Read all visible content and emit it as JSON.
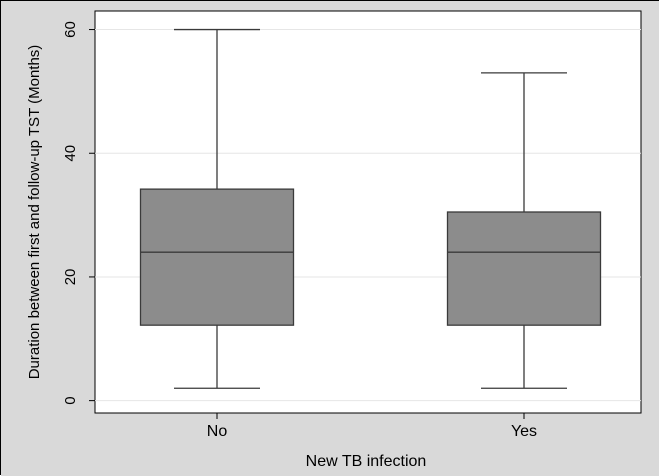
{
  "chart_data": {
    "type": "box",
    "title": "",
    "xlabel": "New TB infection",
    "ylabel": "Duration between first and follow-up TST (Months)",
    "ylim": [
      -2,
      63
    ],
    "yticks": [
      0,
      20,
      40,
      60
    ],
    "grid": true,
    "categories": [
      "No",
      "Yes"
    ],
    "boxes": [
      {
        "category": "No",
        "min": 2,
        "q1": 12.2,
        "median": 24,
        "q3": 34.2,
        "max": 60
      },
      {
        "category": "Yes",
        "min": 2,
        "q1": 12.2,
        "median": 24,
        "q3": 30.5,
        "max": 53
      }
    ],
    "colors": {
      "box_fill": "#8c8c8c",
      "box_stroke": "#3a3a3a",
      "plot_background": "#ffffff",
      "outer_background": "#d9d9d9",
      "grid": "#e6e6e6"
    }
  }
}
